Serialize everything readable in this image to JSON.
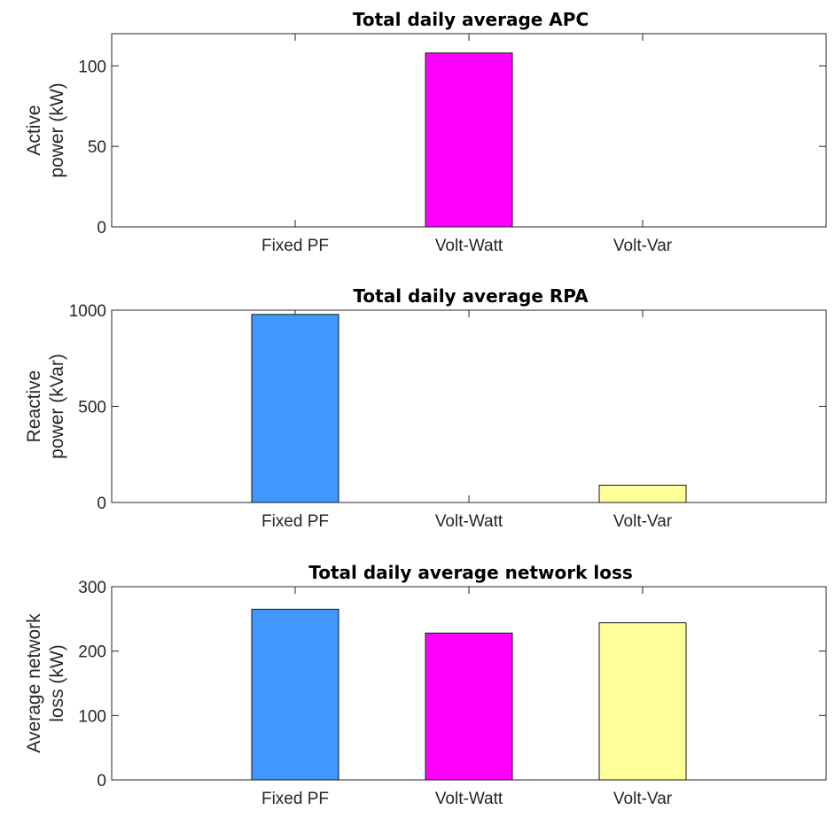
{
  "chart_data": [
    {
      "type": "bar",
      "title": "Total daily average APC",
      "ylabel": [
        "Active",
        "power (kW)"
      ],
      "categories": [
        "Fixed PF",
        "Volt-Watt",
        "Volt-Var"
      ],
      "values": [
        0,
        108,
        0
      ],
      "colors": [
        "#3f97ff",
        "#ff00ff",
        "#ffff99"
      ],
      "ylim": [
        0,
        120
      ],
      "yticks": [
        0,
        50,
        100
      ]
    },
    {
      "type": "bar",
      "title": "Total daily average RPA",
      "ylabel": [
        "Reactive",
        "power (kVar)"
      ],
      "categories": [
        "Fixed PF",
        "Volt-Watt",
        "Volt-Var"
      ],
      "values": [
        978,
        0,
        90
      ],
      "colors": [
        "#3f97ff",
        "#ff00ff",
        "#ffff99"
      ],
      "ylim": [
        0,
        1000
      ],
      "yticks": [
        0,
        500,
        1000
      ]
    },
    {
      "type": "bar",
      "title": "Total daily average network loss",
      "ylabel": [
        "Average network",
        "loss (kW)"
      ],
      "categories": [
        "Fixed PF",
        "Volt-Watt",
        "Volt-Var"
      ],
      "values": [
        265,
        228,
        244
      ],
      "colors": [
        "#3f97ff",
        "#ff00ff",
        "#ffff99"
      ],
      "ylim": [
        0,
        300
      ],
      "yticks": [
        0,
        100,
        200,
        300
      ]
    }
  ]
}
